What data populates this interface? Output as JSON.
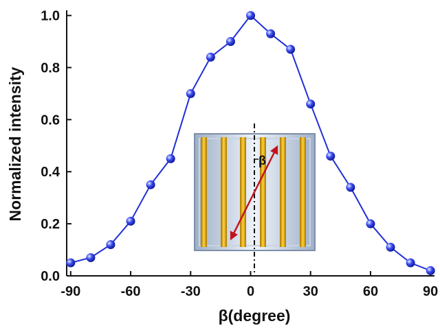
{
  "chart_data": {
    "type": "line",
    "x": [
      -90,
      -80,
      -70,
      -60,
      -50,
      -40,
      -30,
      -20,
      -10,
      0,
      10,
      20,
      30,
      40,
      50,
      60,
      70,
      80,
      90
    ],
    "values": [
      0.05,
      0.07,
      0.12,
      0.21,
      0.35,
      0.45,
      0.7,
      0.84,
      0.9,
      1.0,
      0.93,
      0.87,
      0.66,
      0.46,
      0.34,
      0.2,
      0.11,
      0.05,
      0.02
    ],
    "color": "#1f2fd6",
    "xlabel": "β(degree)",
    "ylabel": "Normalized intensity",
    "xlim": [
      -92,
      92
    ],
    "ylim": [
      0,
      1.02
    ],
    "xticks": [
      -90,
      -60,
      -30,
      0,
      30,
      60,
      90
    ],
    "yticks": [
      {
        "value": 0,
        "label": "0.0"
      },
      {
        "value": 0.2,
        "label": "0.2"
      },
      {
        "value": 0.4,
        "label": "0.4"
      },
      {
        "value": 0.6,
        "label": "0.6"
      },
      {
        "value": 0.8,
        "label": "0.8"
      },
      {
        "value": 1,
        "label": "1.0"
      }
    ],
    "inset_label": "β"
  }
}
